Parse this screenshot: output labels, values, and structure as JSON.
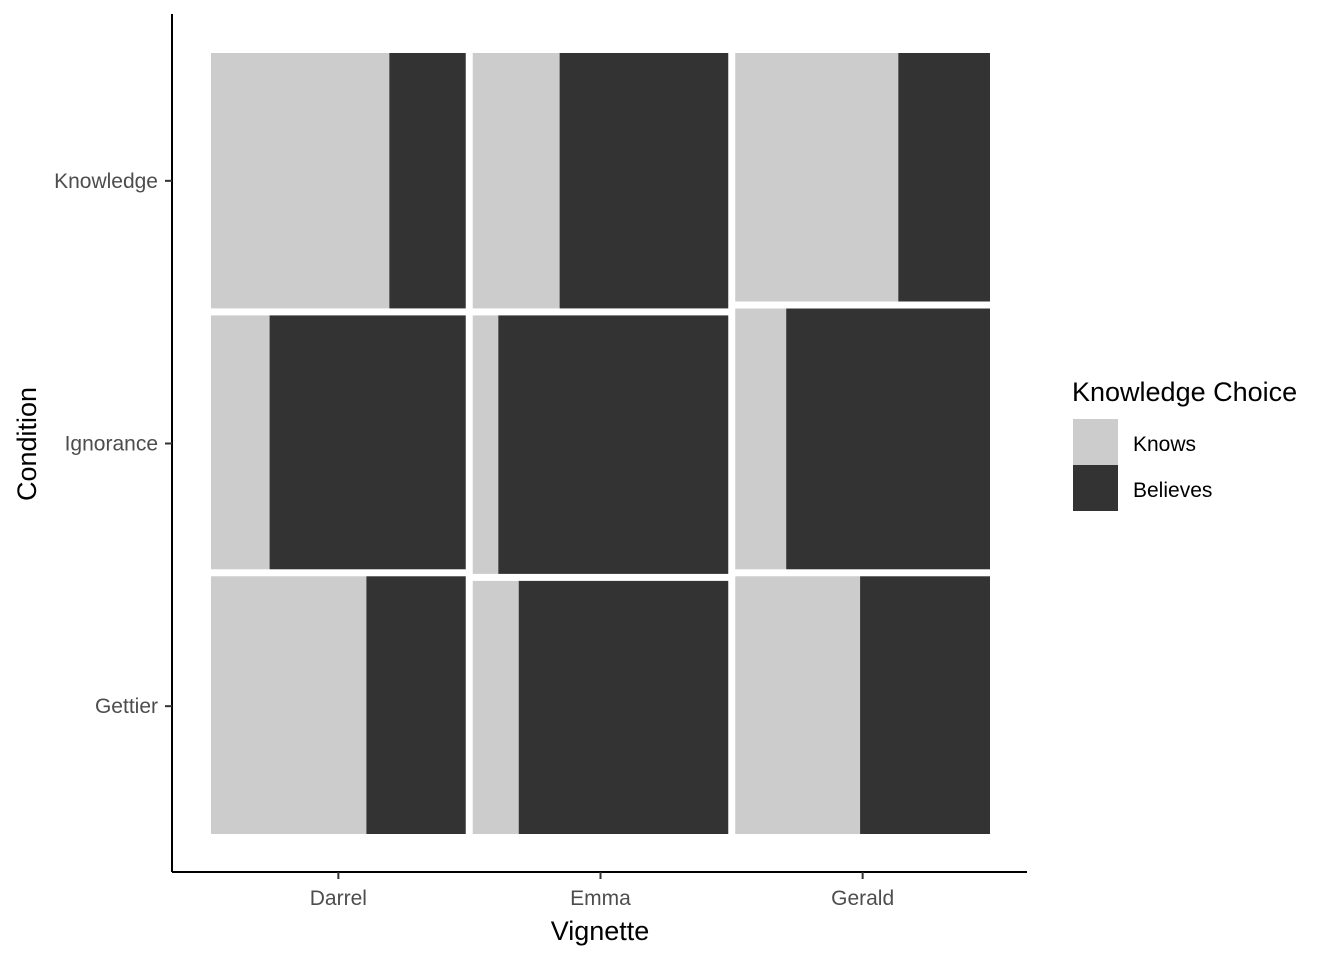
{
  "chart_data": {
    "type": "mosaic",
    "xlabel": "Vignette",
    "ylabel": "Condition",
    "x_categories": [
      "Darrel",
      "Emma",
      "Gerald"
    ],
    "y_categories": [
      "Gettier",
      "Ignorance",
      "Knowledge"
    ],
    "x_proportions": [
      0.333,
      0.334,
      0.333
    ],
    "series": [
      {
        "name": "Knows",
        "color": "#cccccc"
      },
      {
        "name": "Believes",
        "color": "#333333"
      }
    ],
    "cells": [
      {
        "vignette": "Darrel",
        "condition": "Gettier",
        "condition_share": 0.336,
        "knows": 0.61,
        "believes": 0.39
      },
      {
        "vignette": "Darrel",
        "condition": "Ignorance",
        "condition_share": 0.331,
        "knows": 0.23,
        "believes": 0.77
      },
      {
        "vignette": "Darrel",
        "condition": "Knowledge",
        "condition_share": 0.333,
        "knows": 0.7,
        "believes": 0.3
      },
      {
        "vignette": "Emma",
        "condition": "Gettier",
        "condition_share": 0.33,
        "knows": 0.18,
        "believes": 0.82
      },
      {
        "vignette": "Emma",
        "condition": "Ignorance",
        "condition_share": 0.337,
        "knows": 0.1,
        "believes": 0.9
      },
      {
        "vignette": "Emma",
        "condition": "Knowledge",
        "condition_share": 0.333,
        "knows": 0.34,
        "believes": 0.66
      },
      {
        "vignette": "Gerald",
        "condition": "Gettier",
        "condition_share": 0.336,
        "knows": 0.49,
        "believes": 0.51
      },
      {
        "vignette": "Gerald",
        "condition": "Ignorance",
        "condition_share": 0.34,
        "knows": 0.2,
        "believes": 0.8
      },
      {
        "vignette": "Gerald",
        "condition": "Knowledge",
        "condition_share": 0.324,
        "knows": 0.64,
        "believes": 0.36
      }
    ],
    "legend": {
      "title": "Knowledge Choice",
      "position": "right"
    },
    "grid": false
  }
}
